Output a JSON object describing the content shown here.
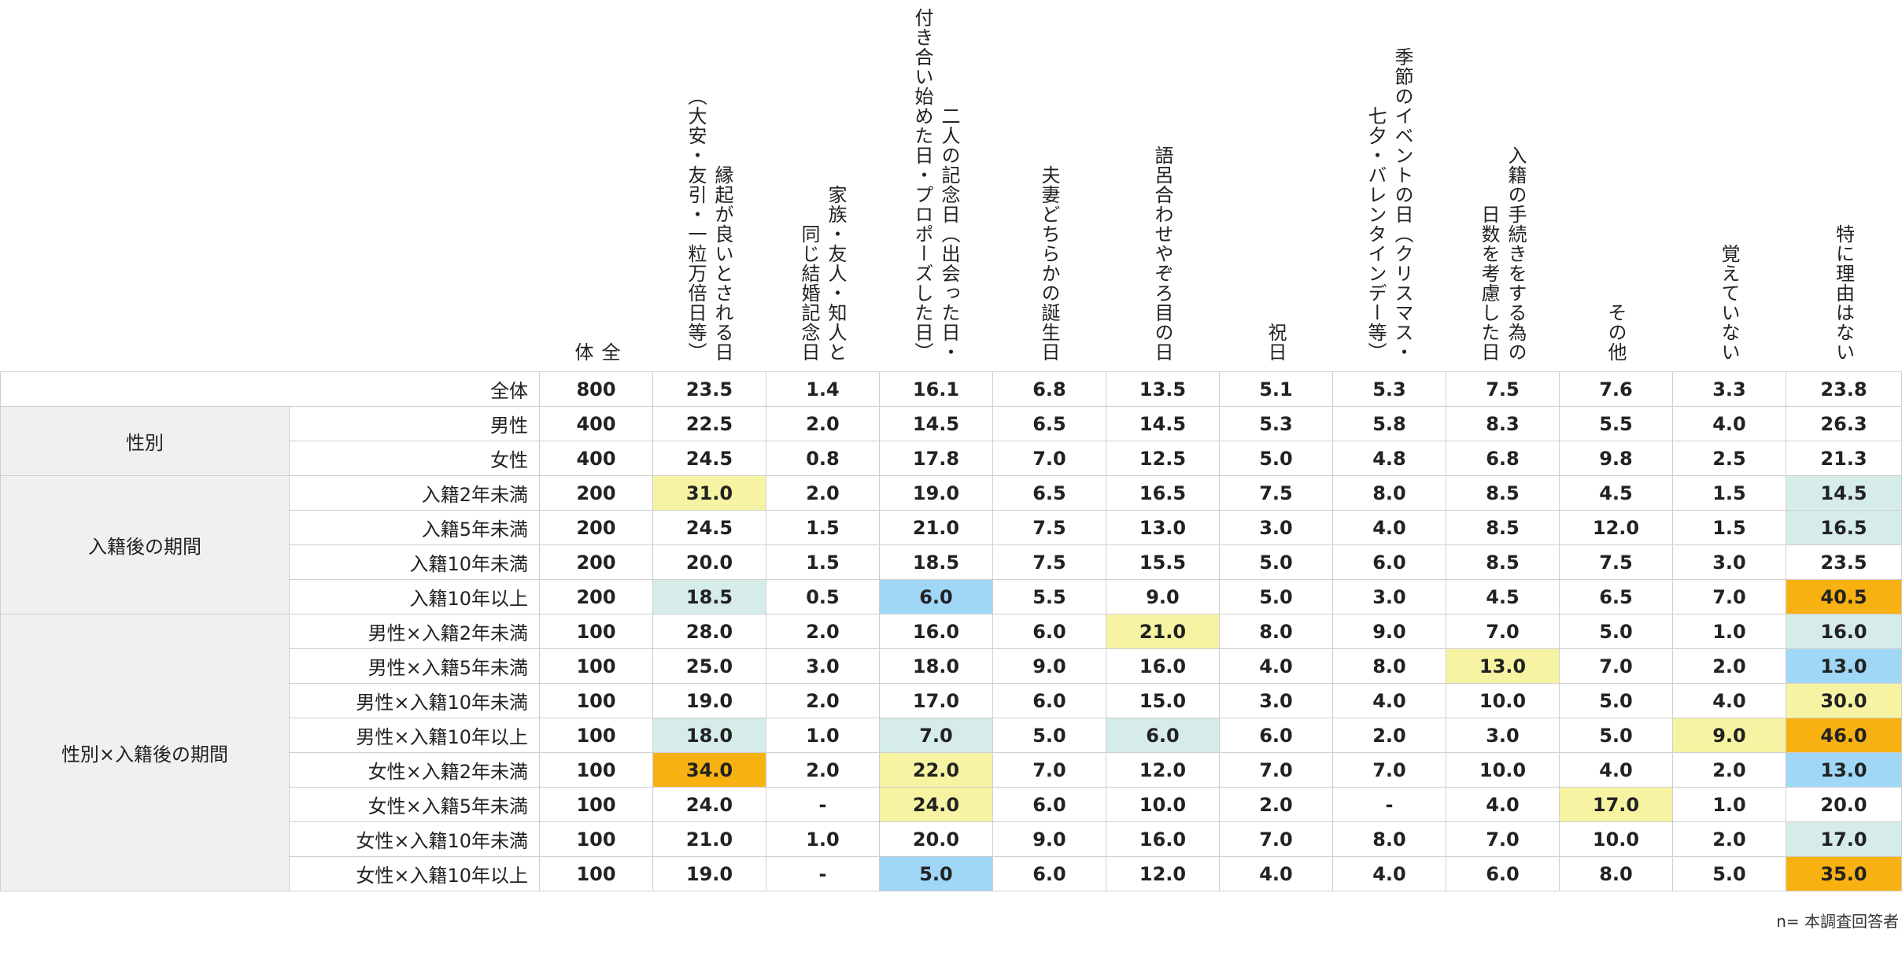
{
  "chart_data": {
    "type": "table",
    "headers": [
      {
        "key": "all",
        "lines": [
          "全",
          "体"
        ]
      },
      {
        "key": "auspicious",
        "lines": [
          "縁起が良いとされる日",
          "（大安・友引・一粒万倍日等）"
        ]
      },
      {
        "key": "family",
        "lines": [
          "家族・友人・知人と",
          "同じ結婚記念日"
        ]
      },
      {
        "key": "anniversary",
        "lines": [
          "二人の記念日（出会った日・",
          "付き合い始めた日・プロポーズした日）"
        ]
      },
      {
        "key": "birthday",
        "lines": [
          "夫妻どちらかの誕生日"
        ]
      },
      {
        "key": "wordplay",
        "lines": [
          "語呂合わせやぞろ目の日"
        ]
      },
      {
        "key": "holiday",
        "lines": [
          "祝日"
        ]
      },
      {
        "key": "season",
        "lines": [
          "季節のイベントの日（クリスマス・",
          "七夕・バレンタインデー等）"
        ]
      },
      {
        "key": "procedure",
        "lines": [
          "入籍の手続きをする為の",
          "日数を考慮した日"
        ]
      },
      {
        "key": "other",
        "lines": [
          "その他"
        ]
      },
      {
        "key": "forgot",
        "lines": [
          "覚えていない"
        ]
      },
      {
        "key": "noreason",
        "lines": [
          "特に理由はない"
        ]
      }
    ],
    "rows": [
      {
        "label": "全体",
        "values": [
          "800",
          "23.5",
          "1.4",
          "16.1",
          "6.8",
          "13.5",
          "5.1",
          "5.3",
          "7.5",
          "7.6",
          "3.3",
          "23.8"
        ],
        "highlights": [
          "",
          "",
          "",
          "",
          "",
          "",
          "",
          "",
          "",
          "",
          "",
          ""
        ]
      },
      {
        "label": "男性",
        "values": [
          "400",
          "22.5",
          "2.0",
          "14.5",
          "6.5",
          "14.5",
          "5.3",
          "5.8",
          "8.3",
          "5.5",
          "4.0",
          "26.3"
        ],
        "highlights": [
          "",
          "",
          "",
          "",
          "",
          "",
          "",
          "",
          "",
          "",
          "",
          ""
        ]
      },
      {
        "label": "女性",
        "values": [
          "400",
          "24.5",
          "0.8",
          "17.8",
          "7.0",
          "12.5",
          "5.0",
          "4.8",
          "6.8",
          "9.8",
          "2.5",
          "21.3"
        ],
        "highlights": [
          "",
          "",
          "",
          "",
          "",
          "",
          "",
          "",
          "",
          "",
          "",
          ""
        ]
      },
      {
        "label": "入籍2年未満",
        "values": [
          "200",
          "31.0",
          "2.0",
          "19.0",
          "6.5",
          "16.5",
          "7.5",
          "8.0",
          "8.5",
          "4.5",
          "1.5",
          "14.5"
        ],
        "highlights": [
          "",
          "yellow",
          "",
          "",
          "",
          "",
          "",
          "",
          "",
          "",
          "",
          "mint"
        ]
      },
      {
        "label": "入籍5年未満",
        "values": [
          "200",
          "24.5",
          "1.5",
          "21.0",
          "7.5",
          "13.0",
          "3.0",
          "4.0",
          "8.5",
          "12.0",
          "1.5",
          "16.5"
        ],
        "highlights": [
          "",
          "",
          "",
          "",
          "",
          "",
          "",
          "",
          "",
          "",
          "",
          "mint"
        ]
      },
      {
        "label": "入籍10年未満",
        "values": [
          "200",
          "20.0",
          "1.5",
          "18.5",
          "7.5",
          "15.5",
          "5.0",
          "6.0",
          "8.5",
          "7.5",
          "3.0",
          "23.5"
        ],
        "highlights": [
          "",
          "",
          "",
          "",
          "",
          "",
          "",
          "",
          "",
          "",
          "",
          ""
        ]
      },
      {
        "label": "入籍10年以上",
        "values": [
          "200",
          "18.5",
          "0.5",
          "6.0",
          "5.5",
          "9.0",
          "5.0",
          "3.0",
          "4.5",
          "6.5",
          "7.0",
          "40.5"
        ],
        "highlights": [
          "",
          "mint",
          "",
          "blue",
          "",
          "",
          "",
          "",
          "",
          "",
          "",
          "orange"
        ]
      },
      {
        "label": "男性×入籍2年未満",
        "values": [
          "100",
          "28.0",
          "2.0",
          "16.0",
          "6.0",
          "21.0",
          "8.0",
          "9.0",
          "7.0",
          "5.0",
          "1.0",
          "16.0"
        ],
        "highlights": [
          "",
          "",
          "",
          "",
          "",
          "yellow",
          "",
          "",
          "",
          "",
          "",
          "mint"
        ]
      },
      {
        "label": "男性×入籍5年未満",
        "values": [
          "100",
          "25.0",
          "3.0",
          "18.0",
          "9.0",
          "16.0",
          "4.0",
          "8.0",
          "13.0",
          "7.0",
          "2.0",
          "13.0"
        ],
        "highlights": [
          "",
          "",
          "",
          "",
          "",
          "",
          "",
          "",
          "yellow",
          "",
          "",
          "blue"
        ]
      },
      {
        "label": "男性×入籍10年未満",
        "values": [
          "100",
          "19.0",
          "2.0",
          "17.0",
          "6.0",
          "15.0",
          "3.0",
          "4.0",
          "10.0",
          "5.0",
          "4.0",
          "30.0"
        ],
        "highlights": [
          "",
          "",
          "",
          "",
          "",
          "",
          "",
          "",
          "",
          "",
          "",
          "yellow"
        ]
      },
      {
        "label": "男性×入籍10年以上",
        "values": [
          "100",
          "18.0",
          "1.0",
          "7.0",
          "5.0",
          "6.0",
          "6.0",
          "2.0",
          "3.0",
          "5.0",
          "9.0",
          "46.0"
        ],
        "highlights": [
          "",
          "mint",
          "",
          "mint",
          "",
          "mint",
          "",
          "",
          "",
          "",
          "yellow",
          "orange"
        ]
      },
      {
        "label": "女性×入籍2年未満",
        "values": [
          "100",
          "34.0",
          "2.0",
          "22.0",
          "7.0",
          "12.0",
          "7.0",
          "7.0",
          "10.0",
          "4.0",
          "2.0",
          "13.0"
        ],
        "highlights": [
          "",
          "orange",
          "",
          "yellow",
          "",
          "",
          "",
          "",
          "",
          "",
          "",
          "blue"
        ]
      },
      {
        "label": "女性×入籍5年未満",
        "values": [
          "100",
          "24.0",
          "-",
          "24.0",
          "6.0",
          "10.0",
          "2.0",
          "-",
          "4.0",
          "17.0",
          "1.0",
          "20.0"
        ],
        "highlights": [
          "",
          "",
          "",
          "yellow",
          "",
          "",
          "",
          "",
          "",
          "yellow",
          "",
          ""
        ]
      },
      {
        "label": "女性×入籍10年未満",
        "values": [
          "100",
          "21.0",
          "1.0",
          "20.0",
          "9.0",
          "16.0",
          "7.0",
          "8.0",
          "7.0",
          "10.0",
          "2.0",
          "17.0"
        ],
        "highlights": [
          "",
          "",
          "",
          "",
          "",
          "",
          "",
          "",
          "",
          "",
          "",
          "mint"
        ]
      },
      {
        "label": "女性×入籍10年以上",
        "values": [
          "100",
          "19.0",
          "-",
          "5.0",
          "6.0",
          "12.0",
          "4.0",
          "4.0",
          "6.0",
          "8.0",
          "5.0",
          "35.0"
        ],
        "highlights": [
          "",
          "",
          "",
          "blue",
          "",
          "",
          "",
          "",
          "",
          "",
          "",
          "orange"
        ]
      }
    ],
    "groups": [
      {
        "label": "性別",
        "rows": [
          1,
          2
        ]
      },
      {
        "label": "入籍後の期間",
        "rows": [
          3,
          4,
          5,
          6
        ]
      },
      {
        "label": "性別×入籍後の期間",
        "rows": [
          7,
          8,
          9,
          10,
          11,
          12,
          13,
          14
        ]
      }
    ],
    "colors": {
      "yellow": "#f6f4a2",
      "mint": "#d5ece9",
      "blue": "#a0d6f6",
      "orange": "#f7b111",
      "group_bg": "#eff0f0",
      "border": "#cfcfcf"
    }
  },
  "note": "n= 本調査回答者"
}
